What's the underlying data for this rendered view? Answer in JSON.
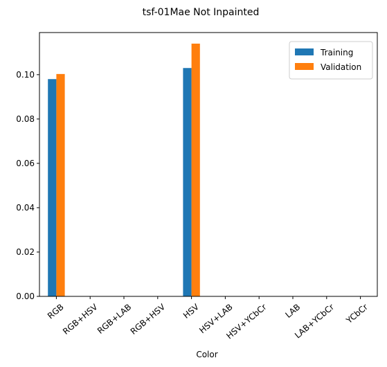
{
  "chart_data": {
    "type": "bar",
    "title": "tsf-01Mae Not Inpainted",
    "xlabel": "Color",
    "ylabel": "",
    "categories": [
      "RGB",
      "RGB+HSV",
      "RGB+LAB",
      "RGB+HSV",
      "HSV",
      "HSV+LAB",
      "HSV+YCbCr",
      "LAB",
      "LAB+YCbCr",
      "YCbCr"
    ],
    "series": [
      {
        "name": "Training",
        "color": "#1f77b4",
        "values": [
          0.098,
          0,
          0,
          0,
          0.103,
          0,
          0,
          0,
          0,
          0
        ]
      },
      {
        "name": "Validation",
        "color": "#ff7f0e",
        "values": [
          0.1003,
          0,
          0,
          0,
          0.114,
          0,
          0,
          0,
          0,
          0
        ]
      }
    ],
    "ylim": [
      0,
      0.119
    ],
    "yticks": [
      "0.00",
      "0.02",
      "0.04",
      "0.06",
      "0.08",
      "0.10"
    ],
    "legend_position": "top-right",
    "grid": false
  }
}
